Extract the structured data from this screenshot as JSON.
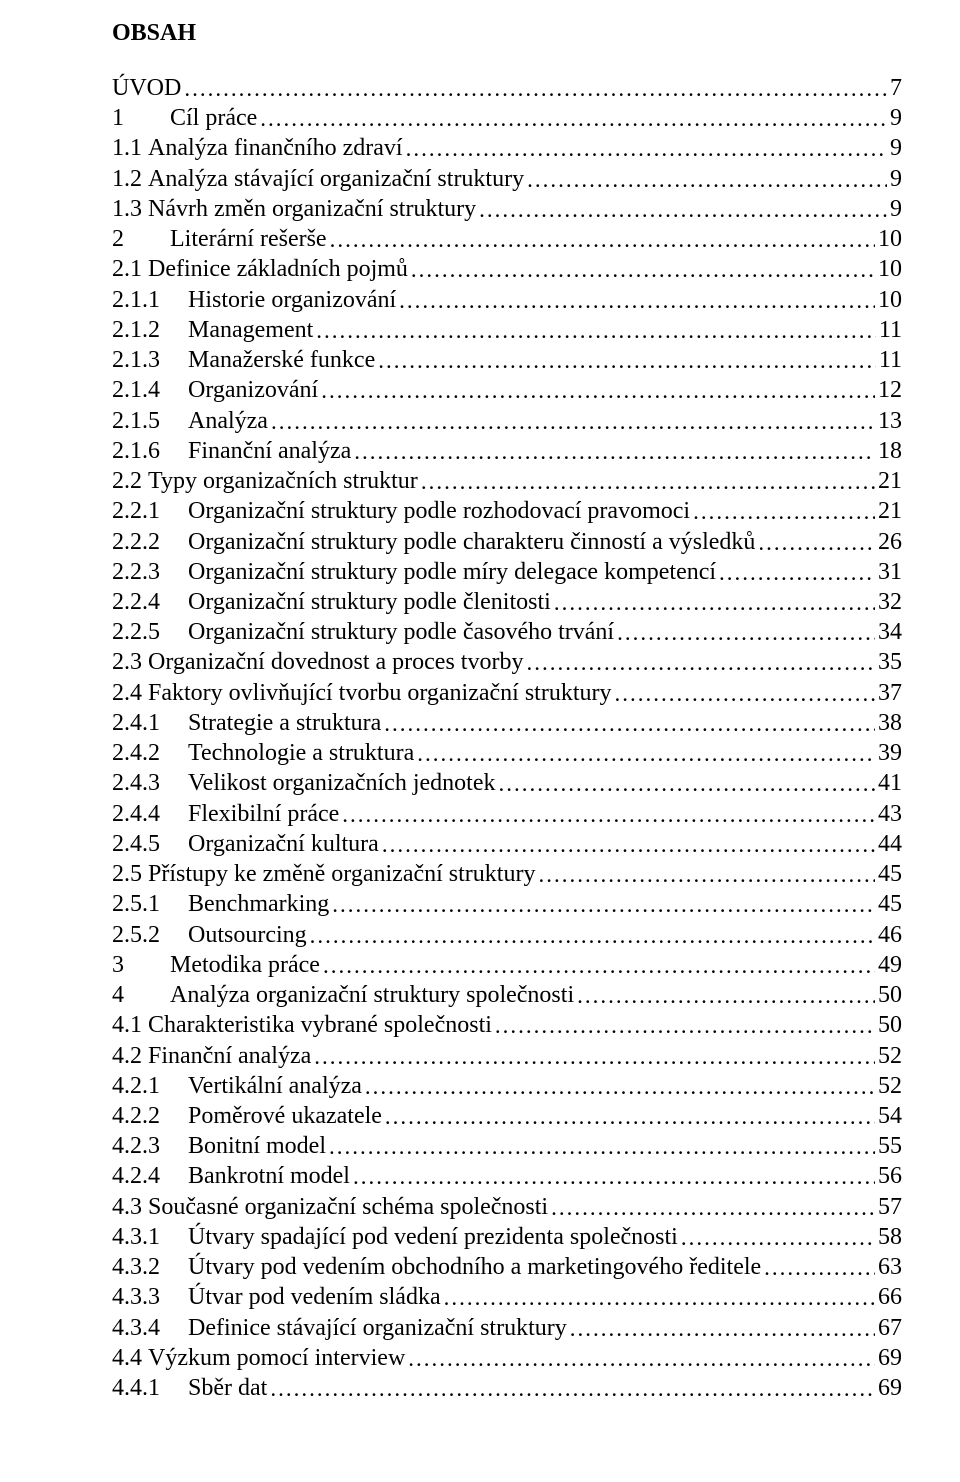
{
  "heading": "OBSAH",
  "entries": [
    {
      "num": "",
      "text": "ÚVOD",
      "page": "7",
      "level": 0
    },
    {
      "num": "1",
      "text": "Cíl práce",
      "page": "9",
      "level": 1
    },
    {
      "num": "1.1",
      "text": "Analýza finančního zdraví",
      "page": "9",
      "level": 2
    },
    {
      "num": "1.2",
      "text": "Analýza stávající organizační struktury",
      "page": "9",
      "level": 2
    },
    {
      "num": "1.3",
      "text": "Návrh změn organizační struktury",
      "page": "9",
      "level": 2
    },
    {
      "num": "2",
      "text": "Literární rešerše",
      "page": "10",
      "level": 1
    },
    {
      "num": "2.1",
      "text": "Definice základních pojmů",
      "page": "10",
      "level": 2
    },
    {
      "num": "2.1.1",
      "text": "Historie organizování",
      "page": "10",
      "level": 3
    },
    {
      "num": "2.1.2",
      "text": "Management",
      "page": "11",
      "level": 3
    },
    {
      "num": "2.1.3",
      "text": "Manažerské funkce",
      "page": "11",
      "level": 3
    },
    {
      "num": "2.1.4",
      "text": "Organizování",
      "page": "12",
      "level": 3
    },
    {
      "num": "2.1.5",
      "text": "Analýza",
      "page": "13",
      "level": 3
    },
    {
      "num": "2.1.6",
      "text": "Finanční analýza",
      "page": "18",
      "level": 3
    },
    {
      "num": "2.2",
      "text": "Typy organizačních struktur",
      "page": "21",
      "level": 2
    },
    {
      "num": "2.2.1",
      "text": "Organizační struktury podle rozhodovací pravomoci",
      "page": "21",
      "level": 3
    },
    {
      "num": "2.2.2",
      "text": "Organizační struktury podle charakteru činností a výsledků",
      "page": "26",
      "level": 3
    },
    {
      "num": "2.2.3",
      "text": "Organizační struktury podle míry delegace kompetencí",
      "page": "31",
      "level": 3
    },
    {
      "num": "2.2.4",
      "text": "Organizační struktury podle členitosti",
      "page": "32",
      "level": 3
    },
    {
      "num": "2.2.5",
      "text": "Organizační struktury podle časového trvání",
      "page": "34",
      "level": 3
    },
    {
      "num": "2.3",
      "text": "Organizační dovednost a proces tvorby",
      "page": "35",
      "level": 2
    },
    {
      "num": "2.4",
      "text": "Faktory ovlivňující tvorbu organizační struktury",
      "page": "37",
      "level": 2
    },
    {
      "num": "2.4.1",
      "text": "Strategie a struktura",
      "page": "38",
      "level": 3
    },
    {
      "num": "2.4.2",
      "text": "Technologie a struktura",
      "page": "39",
      "level": 3
    },
    {
      "num": "2.4.3",
      "text": "Velikost organizačních jednotek",
      "page": "41",
      "level": 3
    },
    {
      "num": "2.4.4",
      "text": "Flexibilní práce",
      "page": "43",
      "level": 3
    },
    {
      "num": "2.4.5",
      "text": "Organizační kultura",
      "page": "44",
      "level": 3
    },
    {
      "num": "2.5",
      "text": "Přístupy ke změně organizační struktury",
      "page": "45",
      "level": 2
    },
    {
      "num": "2.5.1",
      "text": "Benchmarking",
      "page": "45",
      "level": 3
    },
    {
      "num": "2.5.2",
      "text": "Outsourcing",
      "page": "46",
      "level": 3
    },
    {
      "num": "3",
      "text": "Metodika práce",
      "page": "49",
      "level": 1
    },
    {
      "num": "4",
      "text": "Analýza organizační struktury společnosti",
      "page": "50",
      "level": 1
    },
    {
      "num": "4.1",
      "text": "Charakteristika vybrané společnosti",
      "page": "50",
      "level": 2
    },
    {
      "num": "4.2",
      "text": "Finanční analýza",
      "page": "52",
      "level": 2
    },
    {
      "num": "4.2.1",
      "text": "Vertikální analýza",
      "page": "52",
      "level": 3
    },
    {
      "num": "4.2.2",
      "text": "Poměrové ukazatele",
      "page": "54",
      "level": 3
    },
    {
      "num": "4.2.3",
      "text": "Bonitní model",
      "page": "55",
      "level": 3
    },
    {
      "num": "4.2.4",
      "text": "Bankrotní model",
      "page": "56",
      "level": 3
    },
    {
      "num": "4.3",
      "text": "Současné organizační schéma společnosti",
      "page": "57",
      "level": 2
    },
    {
      "num": "4.3.1",
      "text": "Útvary spadající pod vedení prezidenta společnosti",
      "page": "58",
      "level": 3
    },
    {
      "num": "4.3.2",
      "text": "Útvary pod vedením obchodního a marketingového ředitele",
      "page": "63",
      "level": 3
    },
    {
      "num": "4.3.3",
      "text": "Útvar pod vedením sládka",
      "page": "66",
      "level": 3
    },
    {
      "num": "4.3.4",
      "text": "Definice stávající organizační struktury",
      "page": "67",
      "level": 3
    },
    {
      "num": "4.4",
      "text": "Výzkum pomocí interview",
      "page": "69",
      "level": 2
    },
    {
      "num": "4.4.1",
      "text": "Sběr dat",
      "page": "69",
      "level": 3
    }
  ]
}
